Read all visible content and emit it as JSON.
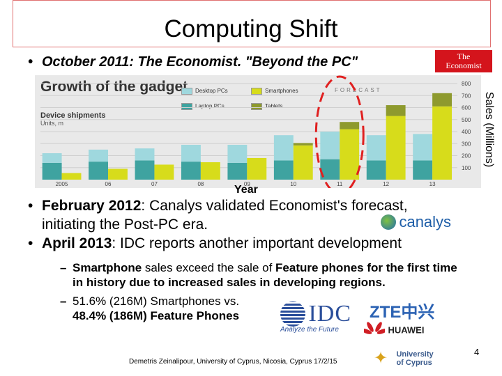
{
  "slide": {
    "title": "Computing Shift",
    "bullet1": "October 2011: The Economist. \"Beyond the PC\"",
    "bullet2_bold": "February 2012",
    "bullet2_rest": ": Canalys validated Economist's forecast, initiating the Post-PC era.",
    "bullet3_bold": "April 2013",
    "bullet3_rest": ": IDC reports another important development",
    "sub1_a": "Smartphone",
    "sub1_b": " sales exceed the sale of ",
    "sub1_c": "Feature phones",
    "sub1_d": " for the first time in history due to increased sales in developing regions.",
    "sub2_line1": "51.6% (216M) Smartphones vs.",
    "sub2_line2": "48.4% (186M) Feature Phones",
    "footer": "Demetris Zeinalipour, University of Cyprus, Nicosia, Cyprus 17/2/15",
    "page_number": "4",
    "right_axis_label": "Sales (Millions)",
    "x_axis_label": "Year",
    "bullet_glyph": "•",
    "dash_glyph": "–"
  },
  "logos": {
    "economist_line1": "The",
    "economist_line2": "Economist",
    "canalys": "canalys",
    "idc": "IDC",
    "idc_tag": "Analyze the Future",
    "zte": "ZTE中兴",
    "huawei": "HUAWEI",
    "ucy_line1": "University",
    "ucy_line2": "of Cyprus"
  },
  "colors": {
    "desktop": "#9fd8de",
    "laptop": "#3fa3a0",
    "smartphone": "#d7dc1b",
    "tablet": "#8e9a2e",
    "highlight_circle": "#e02020",
    "economist_red": "#d4141c"
  },
  "chart_data": {
    "type": "bar",
    "title": "Growth of the gadget",
    "subtitle": "Device shipments",
    "units": "Units, m",
    "forecast_label": "FORECAST",
    "legend": [
      "Desktop PCs",
      "Smartphones",
      "Laptop PCs",
      "Tablets"
    ],
    "categories": [
      "2005",
      "06",
      "07",
      "08",
      "09",
      "10",
      "11",
      "12",
      "13"
    ],
    "ylim": [
      0,
      800
    ],
    "yticks": [
      100,
      200,
      300,
      400,
      500,
      600,
      700,
      800
    ],
    "grid": true,
    "series": [
      {
        "name": "Laptop PCs",
        "group": "pc",
        "values": [
          140,
          150,
          160,
          150,
          140,
          160,
          170,
          160,
          160
        ]
      },
      {
        "name": "Desktop PCs",
        "group": "pc",
        "values": [
          80,
          100,
          100,
          140,
          150,
          210,
          230,
          210,
          220
        ]
      },
      {
        "name": "Smartphones",
        "group": "mobile",
        "values": [
          55,
          90,
          125,
          145,
          180,
          285,
          420,
          530,
          610
        ]
      },
      {
        "name": "Tablets",
        "group": "mobile",
        "values": [
          0,
          0,
          0,
          0,
          0,
          20,
          60,
          90,
          110
        ]
      }
    ],
    "highlight_category": "11"
  }
}
